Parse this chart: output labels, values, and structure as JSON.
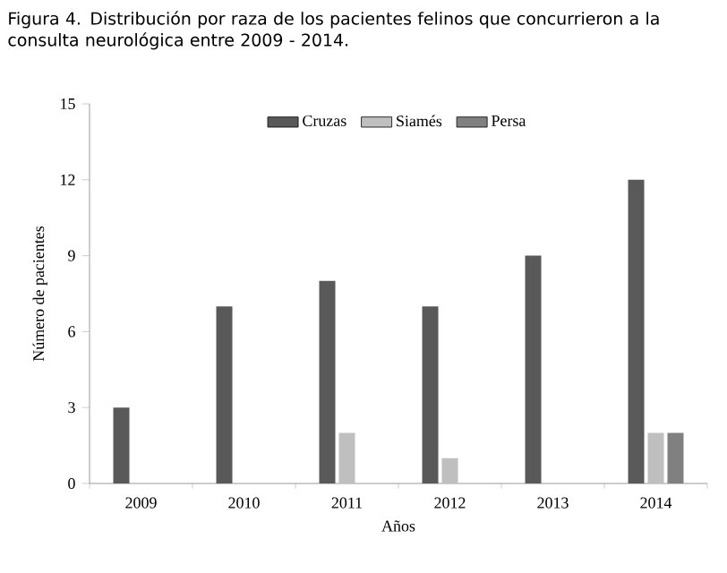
{
  "chart_data": {
    "type": "bar",
    "title": "Figura 4. Distribución por raza de los pacientes felinos que concurrieron a la consulta neurológica entre 2009 - 2014.",
    "xlabel": "Años",
    "ylabel": "Número de pacientes",
    "categories": [
      "2009",
      "2010",
      "2011",
      "2012",
      "2013",
      "2014"
    ],
    "series": [
      {
        "name": "Cruzas",
        "color": "#595959",
        "values": [
          3,
          7,
          8,
          7,
          9,
          12
        ]
      },
      {
        "name": "Siamés",
        "color": "#bfbfbf",
        "values": [
          0,
          0,
          2,
          1,
          0,
          2
        ]
      },
      {
        "name": "Persa",
        "color": "#808080",
        "values": [
          0,
          0,
          0,
          0,
          0,
          2
        ]
      }
    ],
    "ylim": [
      0,
      15
    ],
    "yticks": [
      0,
      3,
      6,
      9,
      12,
      15
    ],
    "grid": false,
    "legend": "top"
  }
}
